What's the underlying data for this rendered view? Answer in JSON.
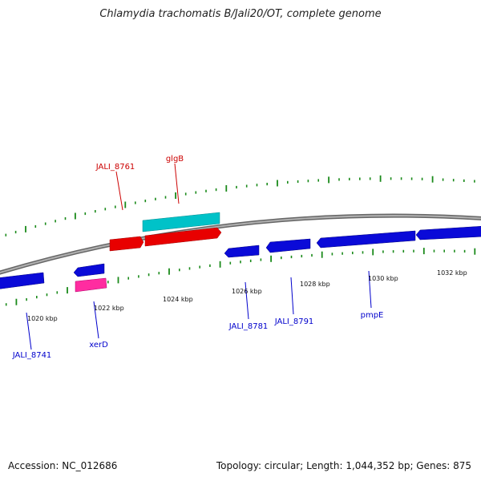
{
  "title": "Chlamydia trachomatis B/Jali20/OT, complete genome",
  "footer": {
    "accession": "Accession: NC_012686",
    "info": "Topology: circular; Length: 1,044,352 bp; Genes: 875"
  },
  "scale": {
    "ticks": [
      "1020 kbp",
      "1022 kbp",
      "1024 kbp",
      "1026 kbp",
      "1028 kbp",
      "1030 kbp",
      "1032 kbp"
    ]
  },
  "colors": {
    "forward_gene": "#e80000",
    "reverse_gene": "#0a0ad8",
    "cyan_feature": "#00c2c8",
    "pink_feature": "#ff2ca0",
    "tick": "#1a8a1a",
    "backbone": "#808080",
    "label_forward": "#cc0000",
    "label_reverse": "#0000cc"
  },
  "genes": {
    "forward": [
      {
        "label": "JALI_8761"
      },
      {
        "label": "glgB"
      }
    ],
    "reverse": [
      {
        "label": "JALI_8741"
      },
      {
        "label": "xerD"
      },
      {
        "label": "JALI_8781"
      },
      {
        "label": "JALI_8791"
      },
      {
        "label": "pmpE"
      }
    ]
  }
}
